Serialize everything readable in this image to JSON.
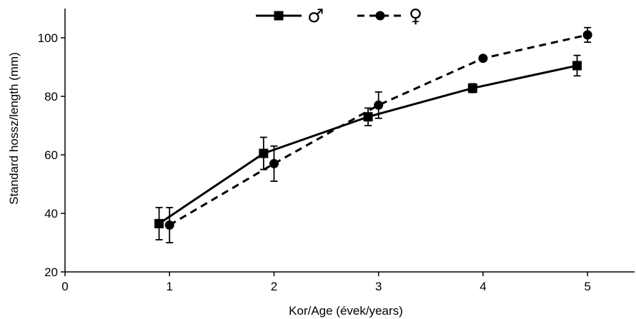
{
  "chart_data": {
    "type": "line",
    "title": "",
    "xlabel": "Kor/Age (évek/years)",
    "ylabel": "Standard hossz/length (mm)",
    "xlim": [
      0,
      5.45
    ],
    "ylim": [
      20,
      110
    ],
    "xticks": [
      0,
      1,
      2,
      3,
      4,
      5
    ],
    "yticks": [
      20,
      40,
      60,
      80,
      100
    ],
    "xtick_labels": [
      "0",
      "1",
      "2",
      "3",
      "4",
      "5"
    ],
    "ytick_labels": [
      "20",
      "40",
      "60",
      "80",
      "100"
    ],
    "grid": false,
    "legend_position": "top-center",
    "series": [
      {
        "name": "♂",
        "marker": "square",
        "line_style": "solid",
        "color": "#000000",
        "x": [
          0.9,
          1.9,
          2.9,
          3.9,
          4.9
        ],
        "y": [
          36.5,
          60.5,
          73.0,
          82.8,
          90.5
        ],
        "error": [
          5.5,
          5.5,
          3.0,
          1.5,
          3.5
        ]
      },
      {
        "name": "♀",
        "marker": "circle",
        "line_style": "dashed",
        "color": "#000000",
        "x": [
          1.0,
          2.0,
          3.0,
          4.0,
          5.0
        ],
        "y": [
          36.0,
          57.0,
          77.0,
          93.0,
          101.0
        ],
        "error": [
          6.0,
          6.0,
          4.5,
          0.8,
          2.5
        ]
      }
    ]
  }
}
